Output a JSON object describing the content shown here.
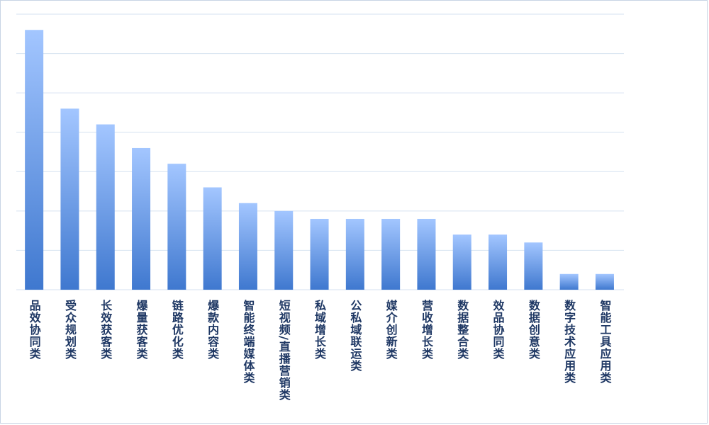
{
  "chart_data": {
    "type": "bar",
    "categories": [
      "品效协同类",
      "受众规划类",
      "长效获客类",
      "爆量获客类",
      "链路优化类",
      "爆款内容类",
      "智能终端媒体类",
      "短视频/直播营销类",
      "私域增长类",
      "公私域联运类",
      "媒介创新类",
      "营收增长类",
      "数据整合类",
      "效品协同类",
      "数据创意类",
      "数字技术应用类",
      "智能工具应用类"
    ],
    "values": [
      33,
      23,
      21,
      18,
      16,
      13,
      11,
      10,
      9,
      9,
      9,
      9,
      7,
      7,
      6,
      2,
      2
    ],
    "color": "#4a84d8",
    "ylim": [
      0,
      35
    ],
    "yticks": [
      0,
      5,
      10,
      15,
      20,
      25,
      30,
      35
    ],
    "grid": true
  }
}
